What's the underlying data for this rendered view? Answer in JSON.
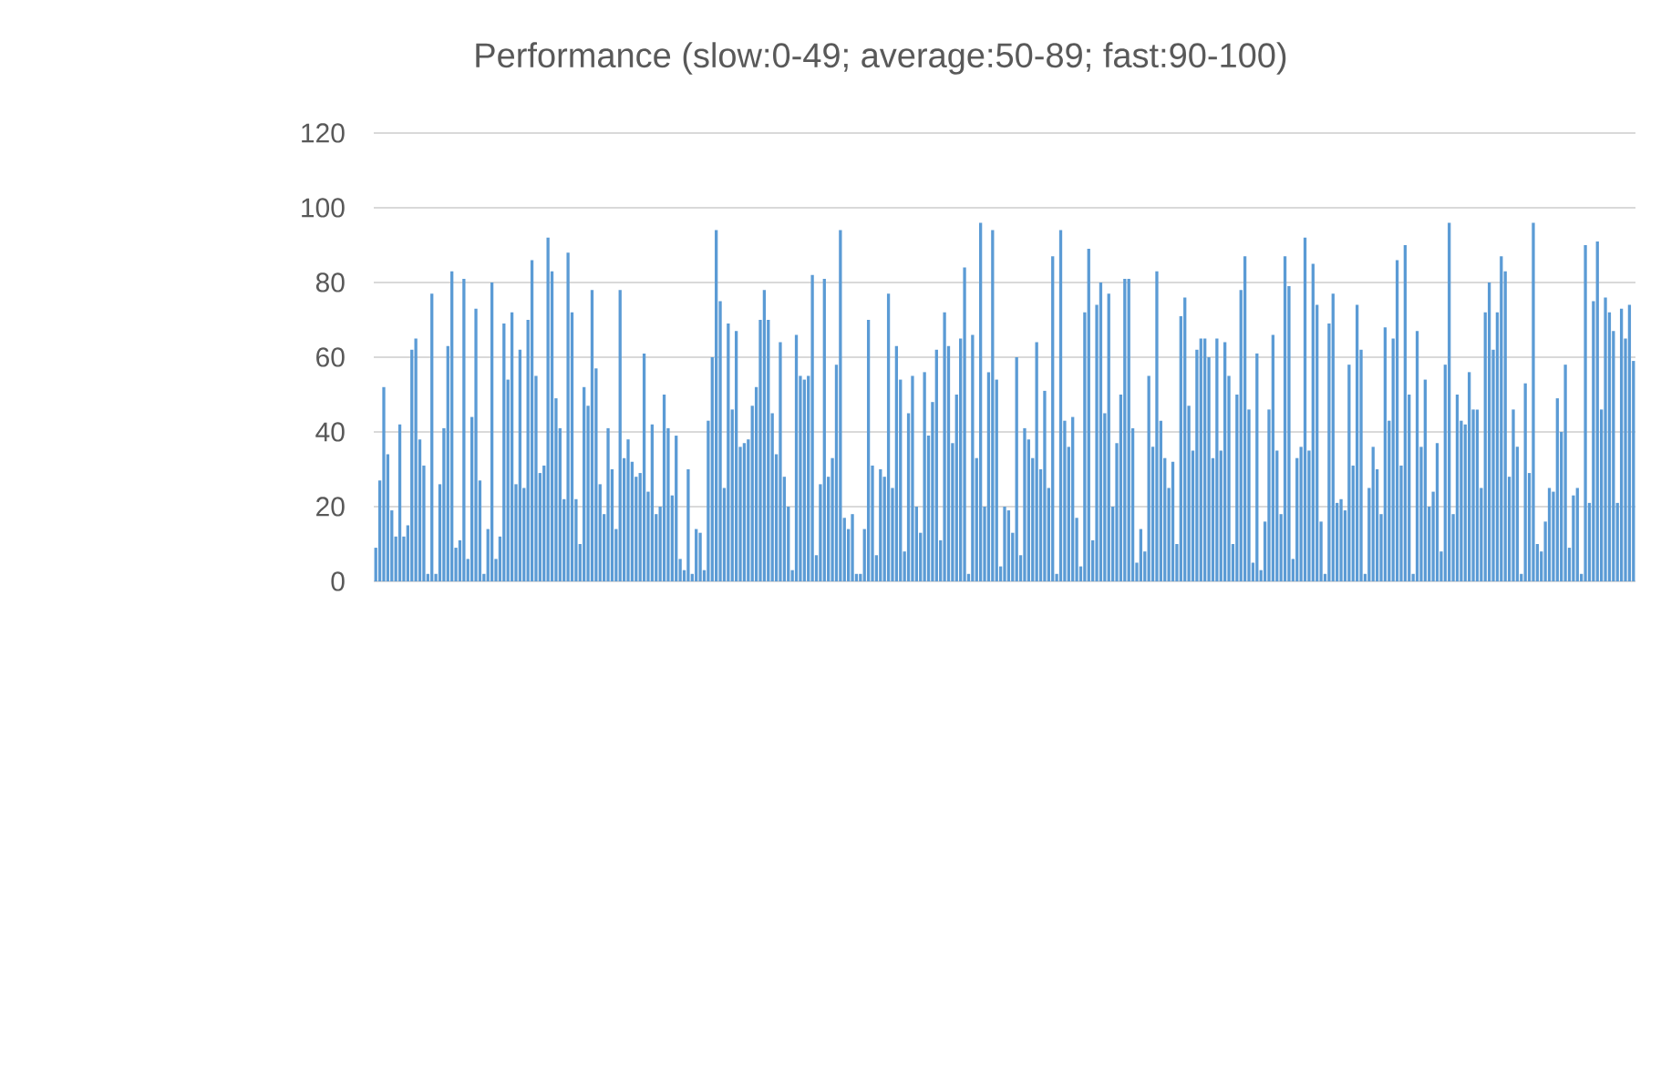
{
  "chart_data": {
    "type": "bar",
    "title": "Performance (slow:0-49; average:50-89; fast:90-100)",
    "categories": [
      null,
      null,
      null,
      null,
      null,
      null,
      null,
      null,
      null,
      null,
      null,
      null,
      null,
      null,
      null,
      null,
      null,
      null,
      null,
      null,
      null,
      null,
      null,
      null,
      null,
      null,
      null,
      null,
      null,
      null,
      null,
      null,
      null,
      null,
      null,
      null,
      null,
      null,
      null,
      null,
      null,
      null,
      null,
      null,
      null,
      null,
      null,
      null,
      null,
      null,
      null,
      null,
      null,
      null,
      null,
      null,
      null,
      null,
      null,
      null,
      null,
      null,
      null,
      null,
      null,
      null,
      null,
      null,
      null,
      null,
      null,
      null,
      null,
      null,
      null,
      null,
      null,
      null,
      null,
      null,
      null,
      null,
      null,
      null,
      null,
      null,
      null,
      null,
      null,
      null,
      null,
      null,
      null,
      null,
      null,
      null,
      null,
      null,
      null,
      null,
      null,
      null,
      null,
      null,
      null,
      null,
      null,
      null,
      null,
      null,
      null,
      null,
      null,
      null,
      null,
      null,
      null,
      null,
      null,
      null,
      null,
      null,
      null,
      null,
      null,
      null,
      null,
      null,
      null,
      null,
      null,
      null,
      null,
      null,
      null,
      null,
      null,
      null,
      null,
      null,
      null,
      null,
      null,
      null,
      null,
      null,
      null,
      null,
      null,
      null,
      null,
      null,
      null,
      null,
      null,
      null,
      null,
      null,
      null,
      null,
      null,
      null,
      null,
      null,
      null,
      null,
      null,
      null,
      null,
      null,
      null,
      null,
      null,
      null,
      null,
      null,
      null,
      null,
      null,
      null,
      null,
      null,
      null,
      null,
      null,
      null,
      null,
      null,
      null,
      null,
      null,
      null,
      null,
      null,
      null,
      null,
      null,
      null,
      null,
      null,
      null,
      null,
      null,
      null,
      null,
      null,
      null,
      null,
      null,
      null,
      null,
      null,
      null,
      null,
      null,
      null,
      null,
      null,
      null,
      null,
      null,
      null,
      null,
      null,
      null,
      null,
      null,
      null,
      null,
      null,
      null,
      null,
      null,
      null,
      null,
      null,
      null,
      null,
      null,
      null,
      null,
      null,
      null,
      null,
      null,
      null,
      null,
      null,
      null,
      null,
      null,
      null,
      null,
      null,
      null,
      null,
      null,
      null,
      null,
      null,
      null,
      null,
      null,
      null,
      null,
      null,
      null,
      null,
      null,
      null,
      null,
      null,
      null,
      null,
      null,
      null,
      null,
      null,
      null,
      null,
      null,
      null,
      null,
      null,
      null,
      null,
      null,
      null,
      null,
      null,
      null,
      null,
      null,
      null,
      null,
      null,
      null,
      null,
      null,
      null,
      null,
      null,
      null,
      null,
      null,
      null,
      null,
      null,
      null,
      null,
      null,
      null,
      null,
      null,
      null
    ],
    "values": [
      9,
      27,
      52,
      34,
      19,
      12,
      42,
      12,
      15,
      62,
      65,
      38,
      31,
      2,
      77,
      2,
      26,
      41,
      63,
      83,
      9,
      11,
      81,
      6,
      44,
      73,
      27,
      2,
      14,
      80,
      6,
      12,
      69,
      54,
      72,
      26,
      62,
      25,
      70,
      86,
      55,
      29,
      31,
      92,
      83,
      49,
      41,
      22,
      88,
      72,
      22,
      10,
      52,
      47,
      78,
      57,
      26,
      18,
      41,
      30,
      14,
      78,
      33,
      38,
      32,
      28,
      29,
      61,
      24,
      42,
      18,
      20,
      50,
      41,
      23,
      39,
      6,
      3,
      30,
      2,
      14,
      13,
      3,
      43,
      60,
      94,
      75,
      25,
      69,
      46,
      67,
      36,
      37,
      38,
      47,
      52,
      70,
      78,
      70,
      45,
      34,
      64,
      28,
      20,
      3,
      66,
      55,
      54,
      55,
      82,
      7,
      26,
      81,
      28,
      33,
      58,
      94,
      17,
      14,
      18,
      2,
      2,
      14,
      70,
      31,
      7,
      30,
      28,
      77,
      25,
      63,
      54,
      8,
      45,
      55,
      20,
      13,
      56,
      39,
      48,
      62,
      11,
      72,
      63,
      37,
      50,
      65,
      84,
      2,
      66,
      33,
      96,
      20,
      56,
      94,
      54,
      4,
      20,
      19,
      13,
      60,
      7,
      41,
      38,
      33,
      64,
      30,
      51,
      25,
      87,
      2,
      94,
      43,
      36,
      44,
      17,
      4,
      72,
      89,
      11,
      74,
      80,
      45,
      77,
      20,
      37,
      50,
      81,
      81,
      41,
      5,
      14,
      8,
      55,
      36,
      83,
      43,
      33,
      25,
      32,
      10,
      71,
      76,
      47,
      35,
      62,
      65,
      65,
      60,
      33,
      65,
      35,
      64,
      55,
      10,
      50,
      78,
      87,
      46,
      5,
      61,
      3,
      16,
      46,
      66,
      35,
      18,
      87,
      79,
      6,
      33,
      36,
      92,
      35,
      85,
      74,
      16,
      2,
      69,
      77,
      21,
      22,
      19,
      58,
      31,
      74,
      62,
      2,
      25,
      36,
      30,
      18,
      68,
      43,
      65,
      86,
      31,
      90,
      50,
      2,
      67,
      36,
      54,
      20,
      24,
      37,
      8,
      58,
      96,
      18,
      50,
      43,
      42,
      56,
      46,
      46,
      25,
      72,
      80,
      62,
      72,
      87,
      83,
      28,
      46,
      36,
      2,
      53,
      29,
      96,
      10,
      8,
      16,
      25,
      24,
      49,
      40,
      58,
      9,
      23,
      25,
      2,
      90,
      21,
      75,
      91,
      46,
      76,
      72,
      67,
      21,
      73,
      65,
      74,
      59
    ],
    "color": "#5b9bd5",
    "ylim": [
      0,
      120
    ],
    "yticks": [
      0,
      20,
      40,
      60,
      80,
      100,
      120
    ],
    "grid": "y"
  }
}
